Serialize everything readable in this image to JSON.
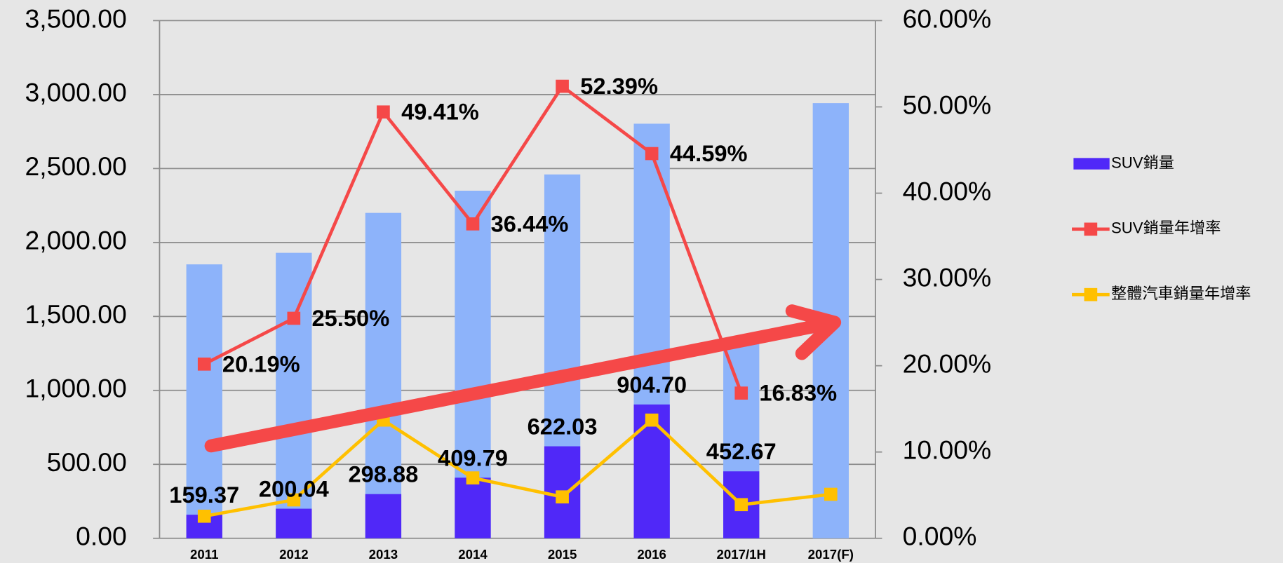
{
  "chart_data": {
    "type": "bar",
    "categories": [
      "2011",
      "2012",
      "2013",
      "2014",
      "2015",
      "2016",
      "2017/1H",
      "2017(F)"
    ],
    "series": [
      {
        "color": "#8db3fa",
        "values": [
          1852,
          1930,
          2200,
          2350,
          2460,
          2803,
          1327,
          2942
        ]
      },
      {
        "name": "SUV銷量",
        "color": "#5028f8",
        "values": [
          159.37,
          200.04,
          298.88,
          409.79,
          622.03,
          904.7,
          452.67,
          null
        ],
        "value_labels": [
          "159.37",
          "200.04",
          "298.88",
          "409.79",
          "622.03",
          "904.70",
          "452.67",
          null
        ]
      },
      {
        "name": "SUV銷量年增率",
        "type": "line",
        "axis": "y2",
        "color": "#f54848",
        "values": [
          20.19,
          25.5,
          49.41,
          36.44,
          52.39,
          44.59,
          16.83,
          null
        ],
        "value_labels": [
          "20.19%",
          "25.50%",
          "49.41%",
          "36.44%",
          "52.39%",
          "44.59%",
          "16.83%",
          null
        ]
      },
      {
        "name": "整體汽車銷量年增率",
        "type": "line",
        "axis": "y2",
        "color": "#ffc000",
        "values": [
          2.56,
          4.45,
          13.7,
          7.0,
          4.8,
          13.7,
          3.9,
          5.1
        ]
      }
    ],
    "ylim": [
      0,
      3500
    ],
    "yticks": [
      {
        "value": 0,
        "label": "0.00"
      },
      {
        "value": 500,
        "label": "500.00"
      },
      {
        "value": 1000,
        "label": "1,000.00"
      },
      {
        "value": 1500,
        "label": "1,500.00"
      },
      {
        "value": 2000,
        "label": "2,000.00"
      },
      {
        "value": 2500,
        "label": "2,500.00"
      },
      {
        "value": 3000,
        "label": "3,000.00"
      },
      {
        "value": 3500,
        "label": "3,500.00"
      }
    ],
    "y2lim": [
      0,
      60
    ],
    "y2ticks": [
      {
        "value": 0,
        "label": "0.00%"
      },
      {
        "value": 10,
        "label": "10.00%"
      },
      {
        "value": 20,
        "label": "20.00%"
      },
      {
        "value": 30,
        "label": "30.00%"
      },
      {
        "value": 40,
        "label": "40.00%"
      },
      {
        "value": 50,
        "label": "50.00%"
      },
      {
        "value": 60,
        "label": "60.00%"
      }
    ],
    "grid": true,
    "legend": "right"
  }
}
